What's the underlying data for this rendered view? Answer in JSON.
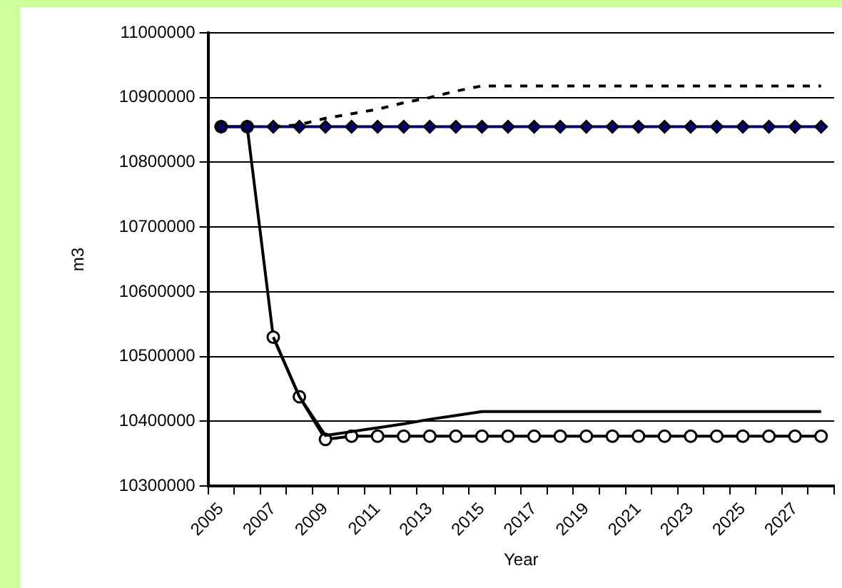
{
  "chart_data": {
    "type": "line",
    "xlabel": "Year",
    "ylabel": "m3",
    "categories": [
      "2005",
      null,
      "2007",
      null,
      "2009",
      null,
      "2011",
      null,
      "2013",
      null,
      "2015",
      null,
      "2017",
      null,
      "2019",
      null,
      "2021",
      null,
      "2023",
      null,
      "2025",
      null,
      "2027",
      null
    ],
    "ylim": [
      10300000,
      11000000
    ],
    "yticks": [
      10300000,
      10400000,
      10500000,
      10600000,
      10700000,
      10800000,
      10900000,
      11000000
    ],
    "grid": "y",
    "legend": false,
    "series": [
      {
        "color": "#000000",
        "marker": "none",
        "line_style": "dashed",
        "values": [
          null,
          null,
          10855000,
          10858000,
          10868000,
          10875000,
          10882000,
          10892000,
          10900000,
          10910000,
          10918000,
          10918000,
          10918000,
          10918000,
          10918000,
          10918000,
          10918000,
          10918000,
          10918000,
          10918000,
          10918000,
          10918000,
          10918000,
          10918000
        ]
      },
      {
        "color": "#000000",
        "marker": "none",
        "line_style": "solid",
        "values": [
          null,
          null,
          10530000,
          10438000,
          10378000,
          10384000,
          10390000,
          10396000,
          10403000,
          10409000,
          10415000,
          10415000,
          10415000,
          10415000,
          10415000,
          10415000,
          10415000,
          10415000,
          10415000,
          10415000,
          10415000,
          10415000,
          10415000,
          10415000
        ]
      },
      {
        "color": "#000080",
        "marker": "diamond",
        "line_style": "solid",
        "values": [
          10855000,
          10855000,
          10855000,
          10855000,
          10855000,
          10855000,
          10855000,
          10855000,
          10855000,
          10855000,
          10855000,
          10855000,
          10855000,
          10855000,
          10855000,
          10855000,
          10855000,
          10855000,
          10855000,
          10855000,
          10855000,
          10855000,
          10855000,
          10855000
        ]
      },
      {
        "color": "#000000",
        "marker": "circle",
        "line_style": "solid",
        "values": [
          10855000,
          10855000,
          10530000,
          10438000,
          10372000,
          10377000,
          10377000,
          10377000,
          10377000,
          10377000,
          10377000,
          10377000,
          10377000,
          10377000,
          10377000,
          10377000,
          10377000,
          10377000,
          10377000,
          10377000,
          10377000,
          10377000,
          10377000,
          10377000
        ]
      }
    ]
  }
}
